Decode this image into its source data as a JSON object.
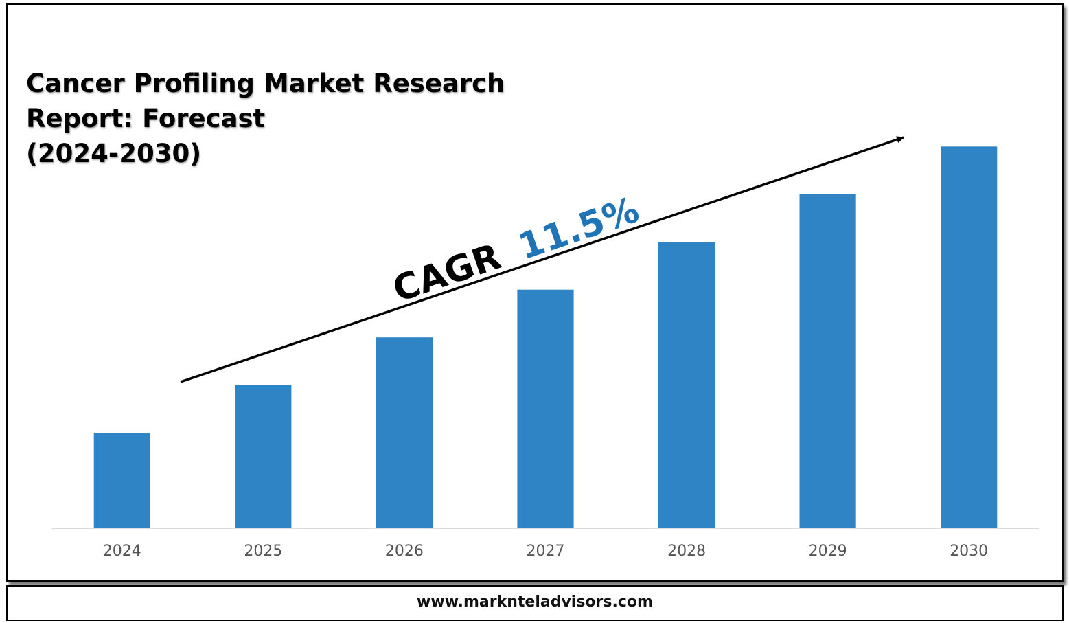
{
  "chart_data": {
    "type": "bar",
    "title_lines": [
      "Cancer Profiling Market Research",
      "Report: Forecast",
      "(2024-2030)"
    ],
    "categories": [
      "2024",
      "2025",
      "2026",
      "2027",
      "2028",
      "2029",
      "2030"
    ],
    "values": [
      1.0,
      1.5,
      2.0,
      2.5,
      3.0,
      3.5,
      4.0
    ],
    "ylim": [
      0,
      4.6
    ],
    "grid": false,
    "legend": "none",
    "bar_color": "#2e84c4",
    "annotation": {
      "label": "CAGR",
      "value": "11.5%",
      "value_color": "#1f73b7"
    }
  },
  "footer": {
    "website": "www.marknteladvisors.com"
  }
}
